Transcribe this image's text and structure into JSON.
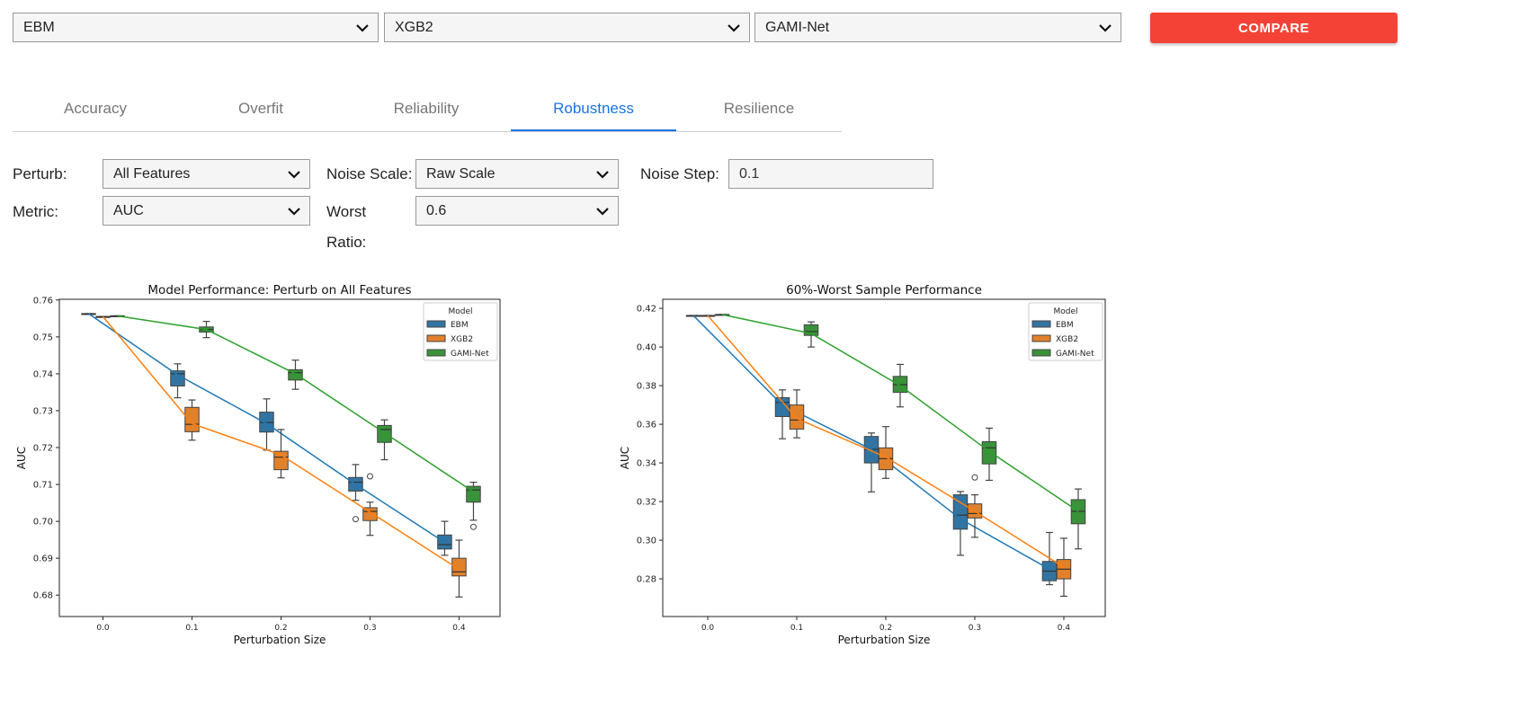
{
  "top": {
    "model1": "EBM",
    "model2": "XGB2",
    "model3": "GAMI-Net",
    "compare": "COMPARE"
  },
  "tabs": [
    "Accuracy",
    "Overfit",
    "Reliability",
    "Robustness",
    "Resilience"
  ],
  "active_tab": "Robustness",
  "form": {
    "perturb_label": "Perturb:",
    "perturb_value": "All Features",
    "noise_scale_label": "Noise Scale:",
    "noise_scale_value": "Raw Scale",
    "noise_step_label": "Noise Step:",
    "noise_step_value": "0.1",
    "metric_label": "Metric:",
    "metric_value": "AUC",
    "worst_label": "Worst",
    "ratio_label": "Ratio:",
    "worst_ratio_value": "0.6"
  },
  "colors": {
    "EBM": "#1f77b4",
    "XGB2": "#ff7f0e",
    "GAMI-Net": "#2ca02c",
    "accent": "#1a73e8",
    "compare": "#f44336"
  },
  "chart_data": [
    {
      "type": "box",
      "title": "Model Performance: Perturb on All Features",
      "xlabel": "Perturbation Size",
      "ylabel": "AUC",
      "x": [
        "0.0",
        "0.1",
        "0.2",
        "0.3",
        "0.4"
      ],
      "yticks": [
        "0.68",
        "0.69",
        "0.70",
        "0.71",
        "0.72",
        "0.73",
        "0.74",
        "0.75",
        "0.76"
      ],
      "ylim": [
        0.6742,
        0.7602
      ],
      "xlim": [
        -0.049,
        0.446
      ],
      "legend_title": "Model",
      "legend": "top-right",
      "series": [
        {
          "name": "EBM",
          "mean": [
            0.7563,
            0.7397,
            0.7265,
            0.71,
            0.6943
          ],
          "boxes": [
            [
              0.7563,
              0.7563,
              0.7563,
              0.7563,
              0.7563
            ],
            [
              0.7335,
              0.7367,
              0.74,
              0.7408,
              0.7427
            ],
            [
              0.7193,
              0.7242,
              0.7268,
              0.7296,
              0.7332
            ],
            [
              0.7057,
              0.7082,
              0.7106,
              0.7119,
              0.7154
            ],
            [
              0.6908,
              0.6925,
              0.6937,
              0.6963,
              0.7
            ]
          ],
          "outliers": [
            [],
            [],
            [],
            [
              0.7122
            ],
            []
          ]
        },
        {
          "name": "XGB2",
          "mean": [
            0.7555,
            0.7265,
            0.718,
            0.7025,
            0.687
          ],
          "boxes": [
            [
              0.7555,
              0.7555,
              0.7555,
              0.7555,
              0.7555
            ],
            [
              0.722,
              0.7243,
              0.7263,
              0.7309,
              0.7329
            ],
            [
              0.7118,
              0.714,
              0.7174,
              0.719,
              0.7249
            ],
            [
              0.6962,
              0.7002,
              0.7027,
              0.7037,
              0.7052
            ],
            [
              0.6795,
              0.6852,
              0.6863,
              0.69,
              0.6949
            ]
          ],
          "outliers": [
            [],
            [],
            [],
            [
              0.7006
            ],
            []
          ]
        },
        {
          "name": "GAMI-Net",
          "mean": [
            0.7557,
            0.752,
            0.74,
            0.724,
            0.708
          ],
          "boxes": [
            [
              0.7557,
              0.7557,
              0.7557,
              0.7557,
              0.7557
            ],
            [
              0.7498,
              0.7513,
              0.752,
              0.7527,
              0.7542
            ],
            [
              0.7358,
              0.7383,
              0.7403,
              0.7411,
              0.7437
            ],
            [
              0.7167,
              0.7214,
              0.7249,
              0.726,
              0.7275
            ],
            [
              0.7003,
              0.7052,
              0.7085,
              0.7095,
              0.7106
            ]
          ],
          "outliers": [
            [],
            [],
            [],
            [],
            [
              0.6985
            ]
          ]
        }
      ]
    },
    {
      "type": "box",
      "title": "60%-Worst Sample Performance",
      "xlabel": "Perturbation Size",
      "ylabel": "AUC",
      "x": [
        "0.0",
        "0.1",
        "0.2",
        "0.3",
        "0.4"
      ],
      "yticks": [
        "0.28",
        "0.30",
        "0.32",
        "0.34",
        "0.36",
        "0.38",
        "0.40",
        "0.42"
      ],
      "ylim": [
        0.2605,
        0.4247
      ],
      "xlim": [
        -0.0505,
        0.4465
      ],
      "legend_title": "Model",
      "legend": "top-right",
      "series": [
        {
          "name": "EBM",
          "mean": [
            0.4163,
            0.37,
            0.347,
            0.311,
            0.285
          ],
          "boxes": [
            [
              0.4163,
              0.4163,
              0.4163,
              0.4163,
              0.4163
            ],
            [
              0.3525,
              0.364,
              0.3713,
              0.3738,
              0.3778
            ],
            [
              0.325,
              0.34,
              0.347,
              0.3537,
              0.3555
            ],
            [
              0.2922,
              0.3057,
              0.313,
              0.3235,
              0.3252
            ],
            [
              0.277,
              0.279,
              0.284,
              0.289,
              0.304
            ]
          ],
          "outliers": [
            [],
            [],
            [],
            [],
            []
          ]
        },
        {
          "name": "XGB2",
          "mean": [
            0.4163,
            0.363,
            0.343,
            0.315,
            0.286
          ],
          "boxes": [
            [
              0.4163,
              0.4163,
              0.4163,
              0.4163,
              0.4163
            ],
            [
              0.353,
              0.3575,
              0.3622,
              0.37,
              0.3778
            ],
            [
              0.332,
              0.3365,
              0.3422,
              0.3478,
              0.3588
            ],
            [
              0.3015,
              0.3115,
              0.3138,
              0.3188,
              0.3235
            ],
            [
              0.271,
              0.28,
              0.285,
              0.29,
              0.301
            ]
          ],
          "outliers": [
            [],
            [],
            [],
            [
              0.3325
            ],
            []
          ]
        },
        {
          "name": "GAMI-Net",
          "mean": [
            0.4168,
            0.407,
            0.38,
            0.346,
            0.315
          ],
          "boxes": [
            [
              0.4168,
              0.4168,
              0.4168,
              0.4168,
              0.4168
            ],
            [
              0.4,
              0.406,
              0.408,
              0.4115,
              0.413
            ],
            [
              0.369,
              0.3765,
              0.3805,
              0.3848,
              0.391
            ],
            [
              0.331,
              0.3395,
              0.3478,
              0.351,
              0.358
            ],
            [
              0.2955,
              0.3085,
              0.315,
              0.321,
              0.3265
            ]
          ],
          "outliers": [
            [],
            [],
            [],
            [],
            []
          ]
        }
      ]
    }
  ]
}
